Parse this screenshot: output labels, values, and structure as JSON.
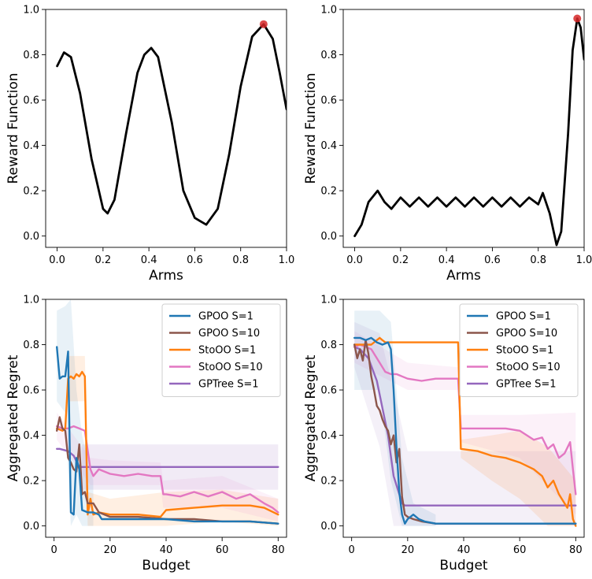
{
  "chart_data": [
    {
      "id": "p1",
      "type": "line",
      "xlabel": "Arms",
      "ylabel": "Reward Function",
      "xlim": [
        -0.05,
        1.0
      ],
      "ylim": [
        -0.05,
        1.0
      ],
      "xticks": [
        0.0,
        0.2,
        0.4,
        0.6,
        0.8,
        1.0
      ],
      "xtick_labels": [
        "0.0",
        "0.2",
        "0.4",
        "0.6",
        "0.8",
        "1.0"
      ],
      "yticks": [
        0.0,
        0.2,
        0.4,
        0.6,
        0.8,
        1.0
      ],
      "ytick_labels": [
        "0.0",
        "0.2",
        "0.4",
        "0.6",
        "0.8",
        "1.0"
      ],
      "series": [
        {
          "name": "reward",
          "color": "#000000",
          "x": [
            0.0,
            0.03,
            0.06,
            0.1,
            0.15,
            0.2,
            0.22,
            0.25,
            0.3,
            0.35,
            0.38,
            0.41,
            0.44,
            0.5,
            0.55,
            0.6,
            0.65,
            0.7,
            0.75,
            0.8,
            0.85,
            0.9,
            0.94,
            0.97,
            1.0
          ],
          "y": [
            0.75,
            0.81,
            0.79,
            0.63,
            0.34,
            0.12,
            0.1,
            0.16,
            0.45,
            0.72,
            0.8,
            0.83,
            0.79,
            0.5,
            0.2,
            0.08,
            0.05,
            0.12,
            0.36,
            0.66,
            0.88,
            0.935,
            0.87,
            0.72,
            0.56
          ]
        }
      ],
      "optimum": {
        "x": 0.9,
        "y": 0.935,
        "color": "#d62728"
      }
    },
    {
      "id": "p2",
      "type": "line",
      "xlabel": "Arms",
      "ylabel": "Reward Function",
      "xlim": [
        -0.05,
        1.0
      ],
      "ylim": [
        -0.05,
        1.0
      ],
      "xticks": [
        0.0,
        0.2,
        0.4,
        0.6,
        0.8,
        1.0
      ],
      "xtick_labels": [
        "0.0",
        "0.2",
        "0.4",
        "0.6",
        "0.8",
        "1.0"
      ],
      "yticks": [
        0.0,
        0.2,
        0.4,
        0.6,
        0.8,
        1.0
      ],
      "ytick_labels": [
        "0.0",
        "0.2",
        "0.4",
        "0.6",
        "0.8",
        "1.0"
      ],
      "series": [
        {
          "name": "reward",
          "color": "#000000",
          "x": [
            0.0,
            0.03,
            0.06,
            0.1,
            0.13,
            0.16,
            0.2,
            0.24,
            0.28,
            0.32,
            0.36,
            0.4,
            0.44,
            0.48,
            0.52,
            0.56,
            0.6,
            0.64,
            0.68,
            0.72,
            0.76,
            0.8,
            0.82,
            0.85,
            0.88,
            0.9,
            0.93,
            0.95,
            0.97,
            0.985,
            1.0
          ],
          "y": [
            0.0,
            0.05,
            0.15,
            0.2,
            0.15,
            0.12,
            0.17,
            0.13,
            0.17,
            0.13,
            0.17,
            0.13,
            0.17,
            0.13,
            0.17,
            0.13,
            0.17,
            0.13,
            0.17,
            0.13,
            0.17,
            0.14,
            0.19,
            0.1,
            -0.04,
            0.02,
            0.45,
            0.82,
            0.96,
            0.92,
            0.78
          ]
        }
      ],
      "optimum": {
        "x": 0.97,
        "y": 0.96,
        "color": "#d62728"
      }
    },
    {
      "id": "p3",
      "type": "line",
      "xlabel": "Budget",
      "ylabel": "Aggregated Regret",
      "xlim": [
        -3,
        83
      ],
      "ylim": [
        -0.05,
        1.0
      ],
      "xticks": [
        0,
        20,
        40,
        60,
        80
      ],
      "xtick_labels": [
        "0",
        "20",
        "40",
        "60",
        "80"
      ],
      "yticks": [
        0.0,
        0.2,
        0.4,
        0.6,
        0.8,
        1.0
      ],
      "ytick_labels": [
        "0.0",
        "0.2",
        "0.4",
        "0.6",
        "0.8",
        "1.0"
      ],
      "legend_position": "top-right",
      "series": [
        {
          "name": "GPOO S=1",
          "color": "#1f77b4",
          "x": [
            1,
            2,
            3,
            4,
            5,
            6,
            7,
            8,
            9,
            10,
            12,
            14,
            16,
            17,
            20,
            30,
            40,
            50,
            60,
            70,
            80
          ],
          "y": [
            0.79,
            0.65,
            0.66,
            0.66,
            0.77,
            0.06,
            0.05,
            0.3,
            0.25,
            0.07,
            0.06,
            0.06,
            0.05,
            0.03,
            0.03,
            0.03,
            0.03,
            0.02,
            0.02,
            0.02,
            0.01
          ]
        },
        {
          "name": "GPOO S=10",
          "color": "#8c564b",
          "x": [
            1,
            2,
            3,
            4,
            5,
            6,
            7,
            8,
            9,
            10,
            11,
            12,
            14,
            16,
            20,
            30,
            40,
            50,
            60,
            70,
            80
          ],
          "y": [
            0.42,
            0.48,
            0.43,
            0.42,
            0.3,
            0.28,
            0.25,
            0.24,
            0.36,
            0.14,
            0.15,
            0.1,
            0.1,
            0.06,
            0.04,
            0.04,
            0.03,
            0.03,
            0.02,
            0.02,
            0.01
          ]
        },
        {
          "name": "StoOO S=1",
          "color": "#ff7f0e",
          "x": [
            1,
            3,
            4,
            5,
            6,
            7,
            8,
            9,
            10,
            11,
            12,
            13,
            14,
            16,
            20,
            30,
            38,
            40,
            50,
            60,
            70,
            75,
            80
          ],
          "y": [
            0.43,
            0.42,
            0.43,
            0.65,
            0.66,
            0.65,
            0.67,
            0.66,
            0.68,
            0.66,
            0.05,
            0.12,
            0.05,
            0.06,
            0.05,
            0.05,
            0.04,
            0.07,
            0.08,
            0.09,
            0.09,
            0.08,
            0.05
          ]
        },
        {
          "name": "StoOO S=10",
          "color": "#e377c2",
          "x": [
            1,
            3,
            5,
            7,
            9,
            11,
            13,
            14,
            16,
            20,
            25,
            30,
            35,
            38,
            39,
            40,
            45,
            50,
            55,
            60,
            65,
            70,
            75,
            78,
            80
          ],
          "y": [
            0.44,
            0.43,
            0.43,
            0.44,
            0.43,
            0.42,
            0.25,
            0.22,
            0.25,
            0.23,
            0.22,
            0.23,
            0.22,
            0.22,
            0.14,
            0.14,
            0.13,
            0.15,
            0.13,
            0.15,
            0.12,
            0.14,
            0.1,
            0.08,
            0.06
          ]
        },
        {
          "name": "GPTree S=1",
          "color": "#9467bd",
          "x": [
            1,
            2,
            5,
            7,
            9,
            10,
            11,
            80
          ],
          "y": [
            0.34,
            0.34,
            0.33,
            0.31,
            0.26,
            0.26,
            0.26,
            0.26
          ]
        }
      ],
      "bands": [
        {
          "series": "GPTree S=1",
          "color": "#9467bd",
          "opacity": 0.13,
          "x": [
            10,
            80
          ],
          "lo": [
            0.16,
            0.16
          ],
          "hi": [
            0.36,
            0.36
          ]
        },
        {
          "series": "GPOO S=1",
          "color": "#1f77b4",
          "opacity": 0.1,
          "x": [
            1,
            4,
            6,
            8,
            10,
            14
          ],
          "lo": [
            0.55,
            0.5,
            0.0,
            0.05,
            0.0,
            0.0
          ],
          "hi": [
            0.95,
            0.97,
            1.0,
            0.6,
            0.4,
            0.2
          ]
        },
        {
          "series": "StoOO S=1",
          "color": "#ff7f0e",
          "opacity": 0.12,
          "x": [
            5,
            8,
            11,
            12,
            20,
            40,
            60,
            80
          ],
          "lo": [
            0.55,
            0.55,
            0.55,
            0.0,
            0.0,
            0.0,
            0.02,
            0.0
          ],
          "hi": [
            0.75,
            0.75,
            0.75,
            0.15,
            0.12,
            0.15,
            0.16,
            0.12
          ]
        },
        {
          "series": "StoOO S=10",
          "color": "#e377c2",
          "opacity": 0.1,
          "x": [
            1,
            13,
            20,
            38,
            39,
            60,
            80
          ],
          "lo": [
            0.38,
            0.18,
            0.18,
            0.18,
            0.08,
            0.08,
            0.02
          ],
          "hi": [
            0.5,
            0.3,
            0.29,
            0.28,
            0.2,
            0.22,
            0.12
          ]
        }
      ]
    },
    {
      "id": "p4",
      "type": "line",
      "xlabel": "Budget",
      "ylabel": "Aggregated Regret",
      "xlim": [
        -3,
        83
      ],
      "ylim": [
        -0.05,
        1.0
      ],
      "xticks": [
        0,
        20,
        40,
        60,
        80
      ],
      "xtick_labels": [
        "0",
        "20",
        "40",
        "60",
        "80"
      ],
      "yticks": [
        0.0,
        0.2,
        0.4,
        0.6,
        0.8,
        1.0
      ],
      "ytick_labels": [
        "0.0",
        "0.2",
        "0.4",
        "0.6",
        "0.8",
        "1.0"
      ],
      "legend_position": "top-right",
      "series": [
        {
          "name": "GPOO S=1",
          "color": "#1f77b4",
          "x": [
            1,
            3,
            5,
            7,
            9,
            11,
            13,
            14,
            15,
            16,
            17,
            18,
            19,
            20,
            22,
            24,
            26,
            30,
            40,
            50,
            60,
            70,
            80
          ],
          "y": [
            0.83,
            0.83,
            0.82,
            0.83,
            0.81,
            0.8,
            0.81,
            0.78,
            0.6,
            0.35,
            0.15,
            0.05,
            0.01,
            0.03,
            0.05,
            0.03,
            0.02,
            0.01,
            0.01,
            0.01,
            0.01,
            0.01,
            0.01
          ]
        },
        {
          "name": "GPOO S=10",
          "color": "#8c564b",
          "x": [
            1,
            2,
            3,
            4,
            5,
            6,
            7,
            8,
            9,
            10,
            11,
            12,
            13,
            14,
            15,
            16,
            17,
            18,
            19,
            20,
            22,
            25,
            30,
            40,
            60,
            80
          ],
          "y": [
            0.8,
            0.74,
            0.78,
            0.73,
            0.82,
            0.76,
            0.66,
            0.6,
            0.53,
            0.51,
            0.47,
            0.44,
            0.42,
            0.36,
            0.4,
            0.28,
            0.34,
            0.13,
            0.05,
            0.04,
            0.03,
            0.02,
            0.01,
            0.01,
            0.01,
            0.01
          ]
        },
        {
          "name": "StoOO S=1",
          "color": "#ff7f0e",
          "x": [
            1,
            5,
            7,
            9,
            10,
            11,
            12,
            15,
            20,
            30,
            38,
            39,
            45,
            50,
            55,
            60,
            65,
            68,
            70,
            72,
            74,
            76,
            77,
            78,
            79,
            80
          ],
          "y": [
            0.8,
            0.8,
            0.8,
            0.82,
            0.83,
            0.82,
            0.81,
            0.81,
            0.81,
            0.81,
            0.81,
            0.34,
            0.33,
            0.31,
            0.3,
            0.28,
            0.25,
            0.22,
            0.17,
            0.2,
            0.14,
            0.1,
            0.08,
            0.14,
            0.03,
            0.0
          ]
        },
        {
          "name": "StoOO S=10",
          "color": "#e377c2",
          "x": [
            1,
            3,
            5,
            7,
            10,
            12,
            14,
            16,
            18,
            20,
            25,
            30,
            35,
            38,
            39,
            45,
            50,
            55,
            60,
            65,
            68,
            70,
            72,
            74,
            76,
            78,
            79,
            80
          ],
          "y": [
            0.79,
            0.8,
            0.79,
            0.78,
            0.72,
            0.68,
            0.67,
            0.67,
            0.66,
            0.65,
            0.64,
            0.65,
            0.65,
            0.65,
            0.43,
            0.43,
            0.43,
            0.43,
            0.42,
            0.38,
            0.39,
            0.34,
            0.36,
            0.3,
            0.32,
            0.37,
            0.25,
            0.14
          ]
        },
        {
          "name": "GPTree S=1",
          "color": "#9467bd",
          "x": [
            1,
            3,
            6,
            9,
            11,
            13,
            15,
            17,
            18,
            19,
            20,
            80
          ],
          "y": [
            0.79,
            0.78,
            0.74,
            0.64,
            0.52,
            0.4,
            0.22,
            0.14,
            0.1,
            0.09,
            0.09,
            0.09
          ]
        }
      ],
      "bands": [
        {
          "series": "GPTree S=1",
          "color": "#9467bd",
          "opacity": 0.1,
          "x": [
            1,
            10,
            15,
            20,
            80
          ],
          "lo": [
            0.7,
            0.35,
            0.0,
            0.0,
            0.0
          ],
          "hi": [
            0.9,
            0.85,
            0.6,
            0.33,
            0.33
          ]
        },
        {
          "series": "StoOO S=10",
          "color": "#e377c2",
          "opacity": 0.1,
          "x": [
            1,
            20,
            38,
            39,
            60,
            80
          ],
          "lo": [
            0.72,
            0.6,
            0.6,
            0.37,
            0.3,
            0.05
          ],
          "hi": [
            0.86,
            0.72,
            0.7,
            0.49,
            0.49,
            0.5
          ]
        },
        {
          "series": "StoOO S=1",
          "color": "#ff7f0e",
          "opacity": 0.12,
          "x": [
            39,
            50,
            60,
            70,
            80
          ],
          "lo": [
            0.3,
            0.2,
            0.12,
            0.0,
            0.0
          ],
          "hi": [
            0.38,
            0.4,
            0.42,
            0.35,
            0.2
          ]
        },
        {
          "series": "GPOO S=1",
          "color": "#1f77b4",
          "opacity": 0.1,
          "x": [
            1,
            10,
            14,
            18,
            22,
            30
          ],
          "lo": [
            0.6,
            0.6,
            0.2,
            0.0,
            0.0,
            0.0
          ],
          "hi": [
            0.95,
            0.95,
            0.9,
            0.3,
            0.1,
            0.05
          ]
        }
      ]
    }
  ]
}
